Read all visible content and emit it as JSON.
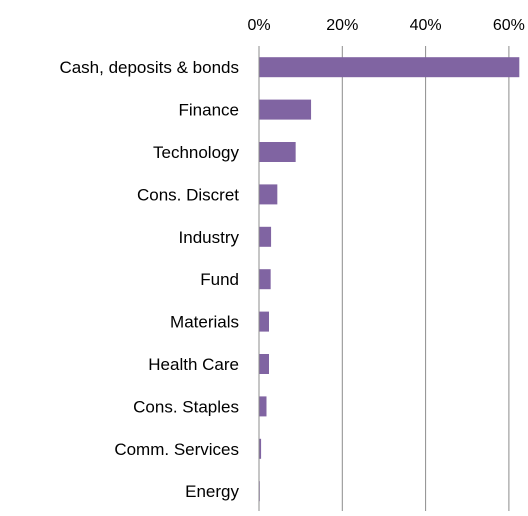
{
  "chart_data": {
    "type": "bar",
    "orientation": "horizontal",
    "categories": [
      "Cash, deposits & bonds",
      "Finance",
      "Technology",
      "Cons. Discret",
      "Industry",
      "Fund",
      "Materials",
      "Health Care",
      "Cons. Staples",
      "Comm. Services",
      "Energy"
    ],
    "values": [
      62.5,
      12.5,
      8.8,
      4.4,
      2.9,
      2.8,
      2.4,
      2.4,
      1.8,
      0.5,
      0.1
    ],
    "x_ticks": [
      "0%",
      "20%",
      "40%",
      "60%"
    ],
    "xlim": [
      0,
      64
    ],
    "x_axis_position": "top",
    "grid": true,
    "legend": "none",
    "colors": {
      "bar": "#8064a2",
      "grid": "#8c8c8c",
      "axis": "#8c8c8c",
      "text": "#000000"
    }
  }
}
